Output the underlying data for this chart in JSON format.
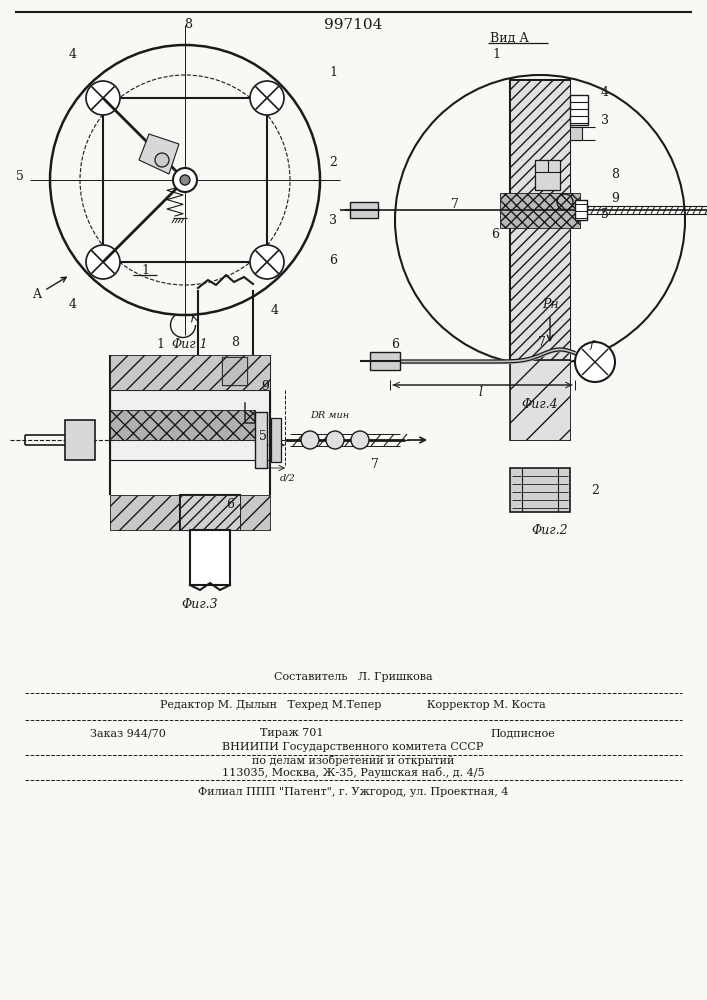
{
  "title": "997104",
  "background_color": "#f8f8f5",
  "line_color": "#1a1a1a",
  "fig1_caption": "Φиг.1",
  "fig2_caption": "Φиг.2",
  "fig3_caption": "Φиг.3",
  "fig4_caption": "Φиг.4",
  "vid_a_label": "Вид А",
  "hatch_color": "#888888",
  "gray1": "#c8c8c8",
  "gray2": "#b0b0b0",
  "gray3": "#d8d8d8",
  "gray_cross": "#e0e0e0"
}
